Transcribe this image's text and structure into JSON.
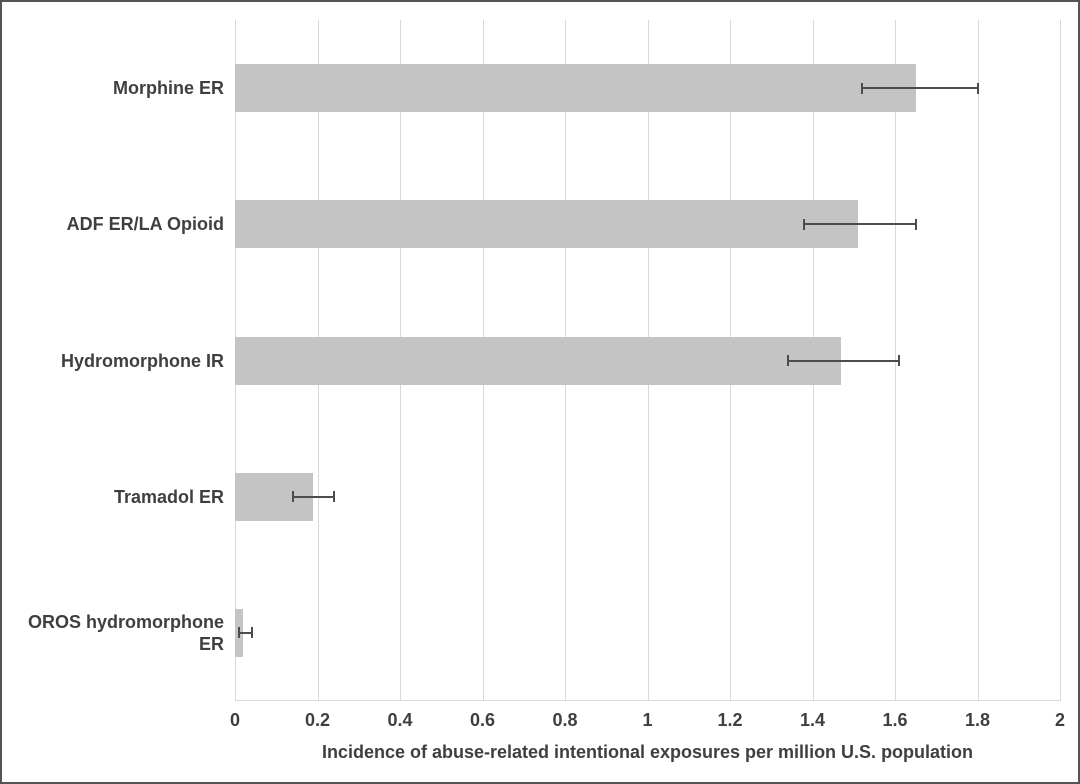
{
  "figure": {
    "background_color": "#ffffff",
    "border_color": "#545454"
  },
  "chart_data": {
    "type": "bar",
    "orientation": "horizontal",
    "title": "",
    "xlabel": "Incidence of abuse-related intentional exposures per million U.S. population",
    "ylabel": "",
    "xlim": [
      0,
      2
    ],
    "x_ticks": [
      0,
      0.2,
      0.4,
      0.6,
      0.8,
      1,
      1.2,
      1.4,
      1.6,
      1.8,
      2
    ],
    "x_tick_labels": [
      "0",
      "0.2",
      "0.4",
      "0.6",
      "0.8",
      "1",
      "1.2",
      "1.4",
      "1.6",
      "1.8",
      "2"
    ],
    "grid": "vertical-gridlines-on",
    "legend": "none",
    "categories": [
      "Morphine ER",
      "ADF ER/LA Opioid",
      "Hydromorphone IR",
      "Tramadol ER",
      "OROS hydromorphone ER"
    ],
    "values": [
      1.65,
      1.51,
      1.47,
      0.19,
      0.02
    ],
    "error_bars": [
      {
        "low": 1.52,
        "high": 1.8
      },
      {
        "low": 1.38,
        "high": 1.65
      },
      {
        "low": 1.34,
        "high": 1.61
      },
      {
        "low": 0.14,
        "high": 0.24
      },
      {
        "low": 0.01,
        "high": 0.04
      }
    ],
    "bar_color": "#c4c4c4",
    "error_bar_color": "#4d4d4d",
    "gridline_color": "#d9d9d9",
    "text_color": "#3f3f3f"
  }
}
